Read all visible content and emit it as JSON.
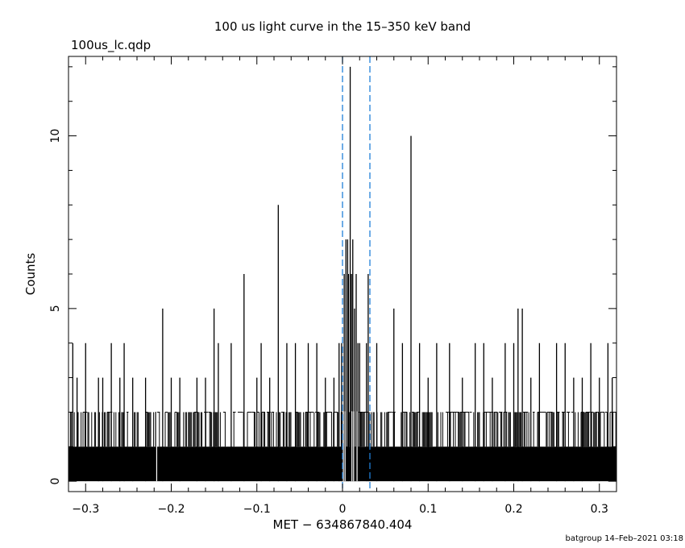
{
  "chart_data": {
    "type": "bar",
    "title": "100 us light curve in the 15–350 keV band",
    "file_label": "100us_lc.qdp",
    "xlabel": "MET − 634867840.404",
    "ylabel": "Counts",
    "xlim": [
      -0.32,
      0.32
    ],
    "ylim": [
      -0.3,
      12.3
    ],
    "x_ticks": [
      -0.3,
      -0.2,
      -0.1,
      0,
      0.1,
      0.2,
      0.3
    ],
    "x_tick_labels": [
      "−0.3",
      "−0.2",
      "−0.1",
      "0",
      "0.1",
      "0.2",
      "0.3"
    ],
    "y_ticks": [
      0,
      5,
      10
    ],
    "y_tick_labels": [
      "0",
      "5",
      "10"
    ],
    "bin_width": 0.0001,
    "grid": false,
    "vertical_markers": [
      0.0,
      0.032
    ],
    "marker_color": "#1f7fd8",
    "series": [
      {
        "baseline_level": 1,
        "typical_level": 2,
        "peaks": [
          {
            "x": -0.315,
            "y": 4
          },
          {
            "x": -0.31,
            "y": 3
          },
          {
            "x": -0.3,
            "y": 4
          },
          {
            "x": -0.285,
            "y": 3
          },
          {
            "x": -0.28,
            "y": 3
          },
          {
            "x": -0.27,
            "y": 4
          },
          {
            "x": -0.26,
            "y": 3
          },
          {
            "x": -0.255,
            "y": 4
          },
          {
            "x": -0.245,
            "y": 3
          },
          {
            "x": -0.23,
            "y": 3
          },
          {
            "x": -0.21,
            "y": 5
          },
          {
            "x": -0.2,
            "y": 3
          },
          {
            "x": -0.19,
            "y": 3
          },
          {
            "x": -0.17,
            "y": 3
          },
          {
            "x": -0.16,
            "y": 3
          },
          {
            "x": -0.15,
            "y": 5
          },
          {
            "x": -0.145,
            "y": 4
          },
          {
            "x": -0.13,
            "y": 4
          },
          {
            "x": -0.115,
            "y": 6
          },
          {
            "x": -0.1,
            "y": 3
          },
          {
            "x": -0.095,
            "y": 4
          },
          {
            "x": -0.085,
            "y": 3
          },
          {
            "x": -0.075,
            "y": 8
          },
          {
            "x": -0.065,
            "y": 4
          },
          {
            "x": -0.055,
            "y": 4
          },
          {
            "x": -0.04,
            "y": 4
          },
          {
            "x": -0.03,
            "y": 4
          },
          {
            "x": -0.02,
            "y": 3
          },
          {
            "x": -0.01,
            "y": 3
          },
          {
            "x": -0.004,
            "y": 4
          },
          {
            "x": -0.001,
            "y": 4
          },
          {
            "x": 0.002,
            "y": 6
          },
          {
            "x": 0.004,
            "y": 7
          },
          {
            "x": 0.006,
            "y": 7
          },
          {
            "x": 0.007,
            "y": 6
          },
          {
            "x": 0.009,
            "y": 12
          },
          {
            "x": 0.0105,
            "y": 6
          },
          {
            "x": 0.012,
            "y": 7
          },
          {
            "x": 0.014,
            "y": 5
          },
          {
            "x": 0.016,
            "y": 6
          },
          {
            "x": 0.018,
            "y": 4
          },
          {
            "x": 0.02,
            "y": 4
          },
          {
            "x": 0.028,
            "y": 4
          },
          {
            "x": 0.03,
            "y": 6
          },
          {
            "x": 0.04,
            "y": 4
          },
          {
            "x": 0.06,
            "y": 5
          },
          {
            "x": 0.07,
            "y": 4
          },
          {
            "x": 0.08,
            "y": 10
          },
          {
            "x": 0.09,
            "y": 4
          },
          {
            "x": 0.1,
            "y": 3
          },
          {
            "x": 0.11,
            "y": 4
          },
          {
            "x": 0.125,
            "y": 4
          },
          {
            "x": 0.14,
            "y": 3
          },
          {
            "x": 0.155,
            "y": 4
          },
          {
            "x": 0.165,
            "y": 4
          },
          {
            "x": 0.175,
            "y": 3
          },
          {
            "x": 0.19,
            "y": 4
          },
          {
            "x": 0.2,
            "y": 4
          },
          {
            "x": 0.205,
            "y": 5
          },
          {
            "x": 0.21,
            "y": 5
          },
          {
            "x": 0.22,
            "y": 3
          },
          {
            "x": 0.23,
            "y": 4
          },
          {
            "x": 0.25,
            "y": 4
          },
          {
            "x": 0.26,
            "y": 4
          },
          {
            "x": 0.27,
            "y": 3
          },
          {
            "x": 0.28,
            "y": 3
          },
          {
            "x": 0.29,
            "y": 4
          },
          {
            "x": 0.3,
            "y": 3
          },
          {
            "x": 0.31,
            "y": 4
          },
          {
            "x": 0.315,
            "y": 3
          }
        ],
        "gaps": [
          -0.217,
          0.001,
          0.003,
          0.011,
          0.013,
          0.017
        ]
      }
    ],
    "footer": "batgroup 14–Feb–2021 03:18"
  }
}
